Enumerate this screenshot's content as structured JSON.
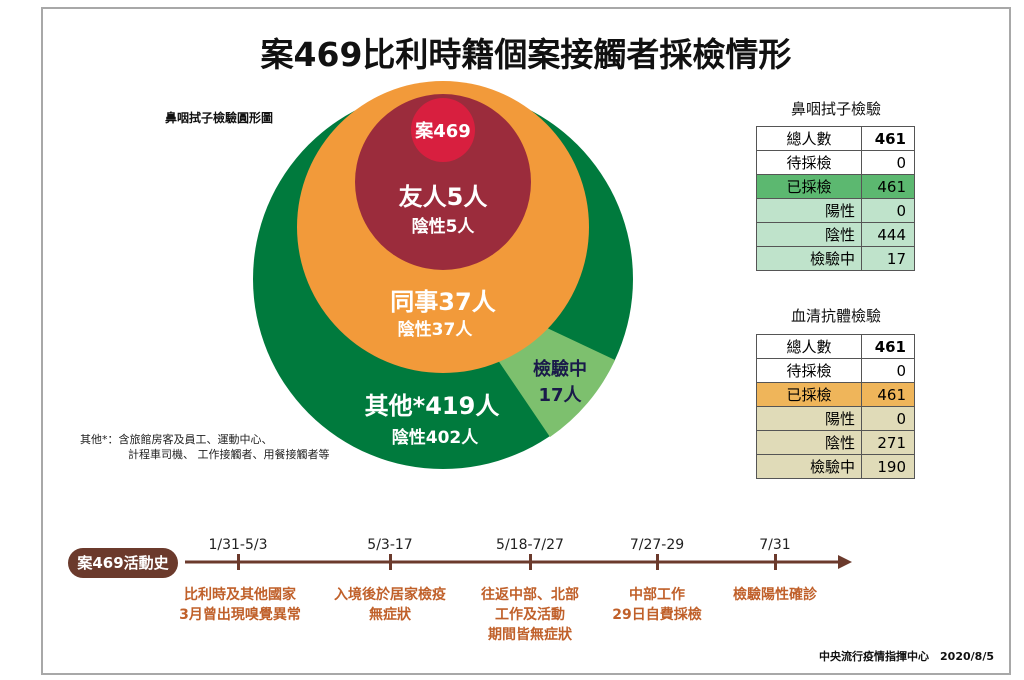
{
  "title": "案469比利時籍個案接觸者採檢情形",
  "chart_label": "鼻咽拭子檢驗圓形圖",
  "circles": {
    "case": "案469",
    "friends": {
      "label": "友人5人",
      "neg": "陰性5人"
    },
    "colleagues": {
      "label": "同事37人",
      "neg": "陰性37人"
    },
    "testing": {
      "label1": "檢驗中",
      "label2": "17人"
    },
    "others": {
      "label": "其他*419人",
      "neg": "陰性402人"
    }
  },
  "colors": {
    "outer": "#007a3d",
    "wedge": "#7dc06e",
    "orange": "#f29a3a",
    "friends": "#9b2c3c",
    "case": "#d81f3f"
  },
  "note": {
    "line1": "其他*：含旅館房客及員工、運動中心、",
    "line2": "計程車司機、 工作接觸者、用餐接觸者等"
  },
  "nasal_table": {
    "title": "鼻咽拭子檢驗",
    "rows": [
      {
        "k": "總人數",
        "v": "461"
      },
      {
        "k": "待採檢",
        "v": "0"
      },
      {
        "k": "已採檢",
        "v": "461"
      },
      {
        "k": "陽性",
        "v": "0"
      },
      {
        "k": "陰性",
        "v": "444"
      },
      {
        "k": "檢驗中",
        "v": "17"
      }
    ]
  },
  "serum_table": {
    "title": "血清抗體檢驗",
    "rows": [
      {
        "k": "總人數",
        "v": "461"
      },
      {
        "k": "待採檢",
        "v": "0"
      },
      {
        "k": "已採檢",
        "v": "461"
      },
      {
        "k": "陽性",
        "v": "0"
      },
      {
        "k": "陰性",
        "v": "271"
      },
      {
        "k": "檢驗中",
        "v": "190"
      }
    ]
  },
  "timeline": {
    "label": "案469活動史",
    "events": [
      {
        "date": "1/31-5/3",
        "l1": "比利時及其他國家",
        "l2": "3月曾出現嗅覺異常",
        "l3": ""
      },
      {
        "date": "5/3-17",
        "l1": "入境後於居家檢疫",
        "l2": "無症狀",
        "l3": ""
      },
      {
        "date": "5/18-7/27",
        "l1": "往返中部、北部",
        "l2": "工作及活動",
        "l3": "期間皆無症狀"
      },
      {
        "date": "7/27-29",
        "l1": "中部工作",
        "l2": "29日自費採檢",
        "l3": ""
      },
      {
        "date": "7/31",
        "l1": "檢驗陽性確診",
        "l2": "",
        "l3": ""
      }
    ]
  },
  "footer": "中央流行疫情指揮中心　2020/8/5"
}
